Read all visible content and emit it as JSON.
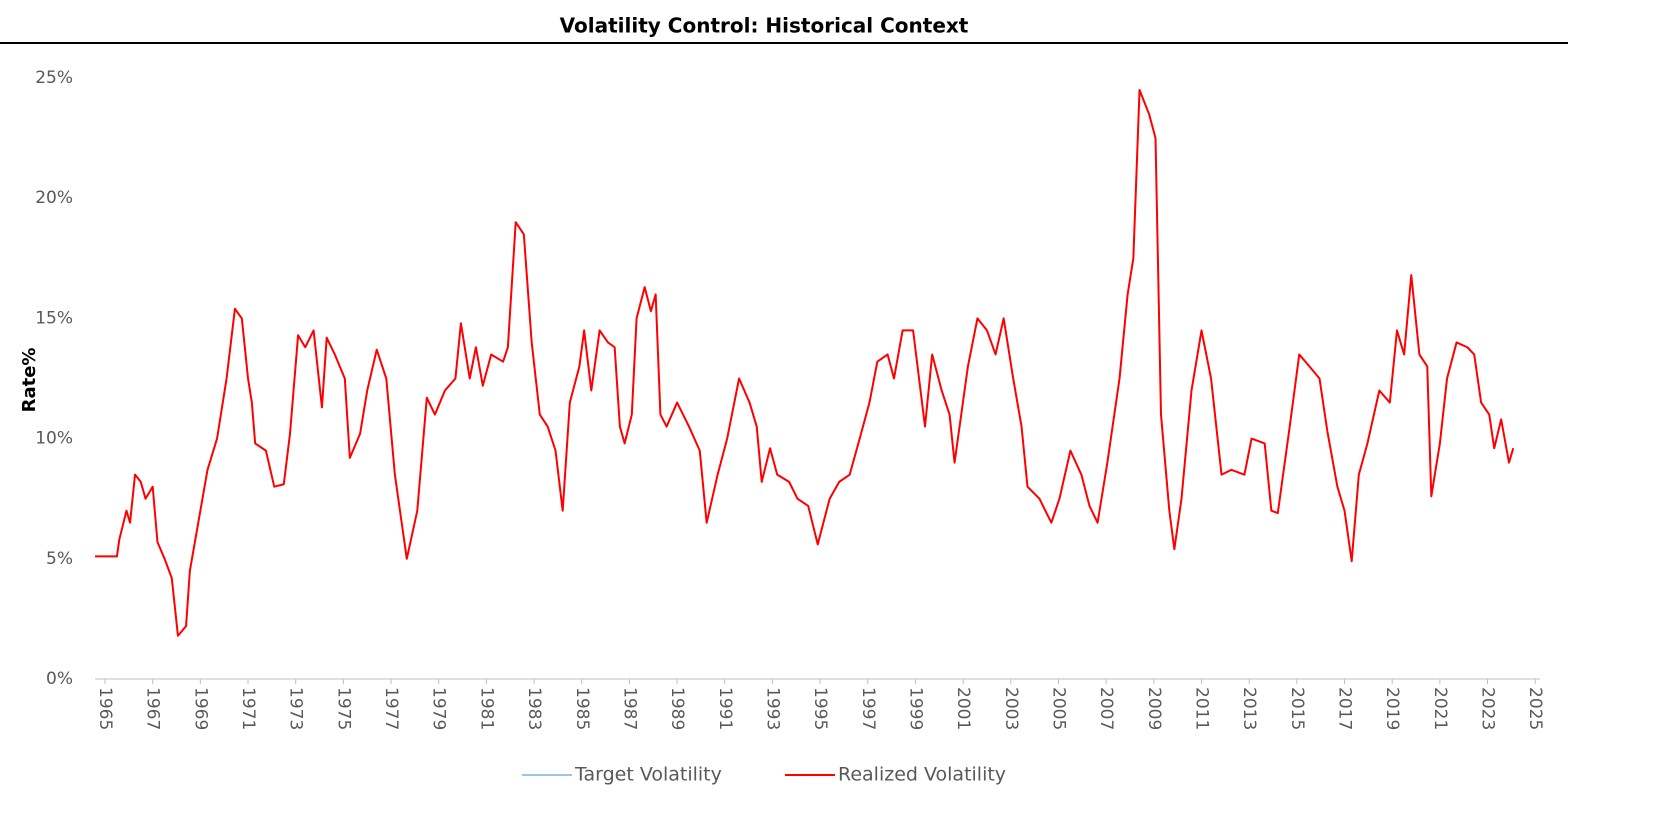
{
  "chart_data": {
    "type": "line",
    "title": "Volatility Control: Historical Context",
    "y_label": "Rate%",
    "x": [
      1964.58,
      1965.5,
      1965.6,
      1965.9,
      1966.05,
      1966.26,
      1966.5,
      1966.7,
      1967.0,
      1967.2,
      1967.5,
      1967.8,
      1968.06,
      1968.4,
      1968.56,
      1969.0,
      1969.3,
      1969.7,
      1970.1,
      1970.45,
      1970.74,
      1971.0,
      1971.16,
      1971.3,
      1971.75,
      1972.1,
      1972.5,
      1972.76,
      1973.1,
      1973.4,
      1973.75,
      1974.1,
      1974.3,
      1974.64,
      1975.06,
      1975.27,
      1975.7,
      1976.0,
      1976.4,
      1976.8,
      1977.16,
      1977.66,
      1978.1,
      1978.5,
      1978.84,
      1979.26,
      1979.7,
      1979.93,
      1980.3,
      1980.56,
      1980.85,
      1981.2,
      1981.7,
      1981.9,
      1982.23,
      1982.57,
      1982.9,
      1983.24,
      1983.57,
      1983.9,
      1984.2,
      1984.5,
      1984.9,
      1985.1,
      1985.4,
      1985.75,
      1986.1,
      1986.38,
      1986.6,
      1986.8,
      1987.1,
      1987.3,
      1987.64,
      1987.9,
      1988.1,
      1988.3,
      1988.56,
      1989.0,
      1989.5,
      1989.95,
      1990.24,
      1990.7,
      1991.1,
      1991.6,
      1992.04,
      1992.34,
      1992.55,
      1992.9,
      1993.2,
      1993.7,
      1994.05,
      1994.5,
      1994.9,
      1995.4,
      1995.8,
      1996.24,
      1996.66,
      1997.07,
      1997.4,
      1997.83,
      1998.1,
      1998.46,
      1998.9,
      1999.4,
      1999.7,
      2000.1,
      2000.43,
      2000.64,
      2001.2,
      2001.6,
      2002.0,
      2002.36,
      2002.7,
      2003.1,
      2003.45,
      2003.7,
      2004.2,
      2004.7,
      2005.04,
      2005.5,
      2005.96,
      2006.3,
      2006.64,
      2007.05,
      2007.56,
      2007.9,
      2008.14,
      2008.4,
      2008.8,
      2009.07,
      2009.3,
      2009.65,
      2009.86,
      2010.16,
      2010.58,
      2011.0,
      2011.4,
      2011.84,
      2012.25,
      2012.8,
      2013.1,
      2013.65,
      2013.93,
      2014.2,
      2014.7,
      2015.1,
      2015.53,
      2015.95,
      2016.28,
      2016.7,
      2017.0,
      2017.3,
      2017.6,
      2017.96,
      2018.46,
      2018.9,
      2019.2,
      2019.5,
      2019.8,
      2020.14,
      2020.47,
      2020.64,
      2021.0,
      2021.3,
      2021.7,
      2022.15,
      2022.44,
      2022.73,
      2023.07,
      2023.28,
      2023.57,
      2023.9,
      2024.08
    ],
    "series": [
      {
        "name": "Target Volatility",
        "color": "#9dc3e6"
      },
      {
        "name": "Realized Volatility",
        "color": "#ff0000",
        "values": [
          5.1,
          5.1,
          5.8,
          7,
          6.5,
          8.5,
          8.2,
          7.5,
          8.0,
          5.7,
          5.0,
          4.2,
          1.8,
          2.2,
          4.5,
          7,
          8.7,
          10,
          12.5,
          15.4,
          15,
          12.5,
          11.5,
          9.8,
          9.5,
          8.0,
          8.1,
          10.2,
          14.3,
          13.8,
          14.5,
          11.3,
          14.2,
          13.5,
          12.5,
          9.2,
          10.2,
          12,
          13.7,
          12.5,
          8.5,
          5.0,
          7.0,
          11.7,
          11,
          12,
          12.5,
          14.8,
          12.5,
          13.8,
          12.2,
          13.5,
          13.2,
          13.8,
          19,
          18.5,
          14,
          11,
          10.5,
          9.5,
          7,
          11.5,
          13,
          14.5,
          12,
          14.5,
          14,
          13.8,
          10.5,
          9.8,
          11,
          15,
          16.3,
          15.3,
          16,
          11,
          10.5,
          11.5,
          10.5,
          9.5,
          6.5,
          8.5,
          10,
          12.5,
          11.5,
          10.5,
          8.2,
          9.6,
          8.5,
          8.2,
          7.5,
          7.2,
          5.6,
          7.5,
          8.2,
          8.5,
          10,
          11.5,
          13.2,
          13.5,
          12.5,
          14.5,
          14.5,
          10.5,
          13.5,
          12,
          11,
          9.0,
          13,
          15,
          14.5,
          13.5,
          15,
          12.5,
          10.5,
          8,
          7.5,
          6.5,
          7.5,
          9.5,
          8.5,
          7.2,
          6.5,
          9,
          12.5,
          16,
          17.5,
          24.5,
          23.5,
          22.5,
          11,
          7,
          5.4,
          7.5,
          12,
          14.5,
          12.5,
          8.5,
          8.7,
          8.5,
          10,
          9.8,
          7,
          6.9,
          10.5,
          13.5,
          13,
          12.5,
          10.3,
          8,
          7,
          4.9,
          8.5,
          9.8,
          12,
          11.5,
          14.5,
          13.5,
          16.8,
          13.5,
          13,
          7.6,
          9.8,
          12.5,
          14,
          13.8,
          13.5,
          11.5,
          11,
          9.6,
          10.8,
          9.0,
          9.6
        ]
      }
    ],
    "xlim": [
      1964.58,
      2025.2
    ],
    "xticks": [
      1965,
      1967,
      1969,
      1971,
      1973,
      1975,
      1977,
      1979,
      1981,
      1983,
      1985,
      1987,
      1989,
      1991,
      1993,
      1995,
      1997,
      1999,
      2001,
      2003,
      2005,
      2007,
      2009,
      2011,
      2013,
      2015,
      2017,
      2019,
      2021,
      2023,
      2025
    ],
    "ylim": [
      0,
      25
    ],
    "yticks": [
      {
        "value": 0,
        "label": "0%"
      },
      {
        "value": 5,
        "label": "5%"
      },
      {
        "value": 10,
        "label": "10%"
      },
      {
        "value": 15,
        "label": "15%"
      },
      {
        "value": 20,
        "label": "20%"
      },
      {
        "value": 25,
        "label": "25%"
      }
    ],
    "grid": false,
    "legend": "bottom"
  }
}
